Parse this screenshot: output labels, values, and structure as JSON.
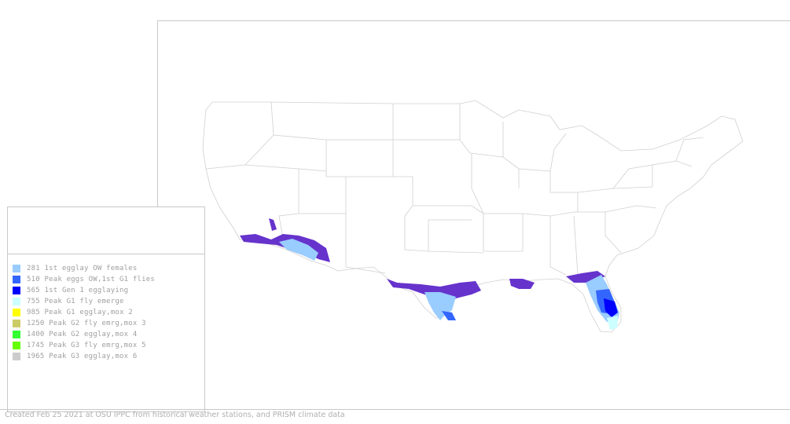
{
  "legend": {
    "items": [
      {
        "label": "281 1st egglay OW females",
        "color": "#99ccff"
      },
      {
        "label": "510 Peak eggs OW,1st G1 flies",
        "color": "#3366ff"
      },
      {
        "label": "565 1st Gen 1 egglaying",
        "color": "#0000ff"
      },
      {
        "label": "755 Peak G1 fly emerge",
        "color": "#ccffff"
      },
      {
        "label": "985 Peak G1 egglay,mox 2",
        "color": "#ffff00"
      },
      {
        "label": "1250 Peak G2 fly emrg,mox 3",
        "color": "#cccc66"
      },
      {
        "label": "1400 Peak G2 egglay,mox 4",
        "color": "#33ff33"
      },
      {
        "label": "1745 Peak G3 fly emrg,mox 5",
        "color": "#66ff00"
      },
      {
        "label": "1965 Peak G3 egglay,mox 6",
        "color": "#cccccc"
      }
    ],
    "below_threshold_color": "#6633cc"
  },
  "footer": {
    "text": "Created Feb 25 2021 at OSU IPPC from  historical weather stations, and PRISM climate data"
  },
  "map": {
    "region": "contiguous-united-states",
    "state_border_color": "#d0d0d0"
  }
}
